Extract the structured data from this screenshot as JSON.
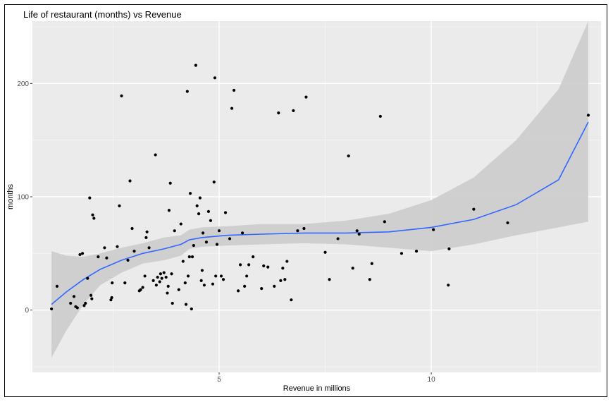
{
  "chart_data": {
    "type": "scatter",
    "title": "Life of restaurant (months) vs Revenue",
    "xlabel": "Revenue in millions",
    "ylabel": "months",
    "xlim": [
      0.6,
      14.0
    ],
    "ylim": [
      -55,
      255
    ],
    "xticks": [
      5,
      10
    ],
    "yticks": [
      0,
      100,
      200
    ],
    "grid": true,
    "background": "#ebebeb",
    "point_color": "#000000",
    "smooth_color": "#3366ff",
    "band_color": "#cccccc",
    "points": [
      [
        1.05,
        1
      ],
      [
        1.18,
        21
      ],
      [
        1.5,
        6
      ],
      [
        1.58,
        12
      ],
      [
        1.62,
        3
      ],
      [
        1.66,
        2
      ],
      [
        1.72,
        49
      ],
      [
        1.78,
        50
      ],
      [
        1.82,
        4
      ],
      [
        1.85,
        6
      ],
      [
        1.9,
        28
      ],
      [
        1.95,
        99
      ],
      [
        1.98,
        13
      ],
      [
        2.0,
        10
      ],
      [
        2.02,
        84
      ],
      [
        2.05,
        81
      ],
      [
        2.15,
        47
      ],
      [
        2.3,
        55
      ],
      [
        2.35,
        46
      ],
      [
        2.45,
        9
      ],
      [
        2.47,
        11
      ],
      [
        2.48,
        24
      ],
      [
        2.6,
        56
      ],
      [
        2.65,
        92
      ],
      [
        2.7,
        189
      ],
      [
        2.78,
        24
      ],
      [
        2.85,
        44
      ],
      [
        2.9,
        114
      ],
      [
        2.95,
        72
      ],
      [
        3.0,
        52
      ],
      [
        3.12,
        17
      ],
      [
        3.15,
        18
      ],
      [
        3.2,
        20
      ],
      [
        3.25,
        30
      ],
      [
        3.28,
        64
      ],
      [
        3.3,
        69
      ],
      [
        3.35,
        55
      ],
      [
        3.45,
        26
      ],
      [
        3.5,
        137
      ],
      [
        3.52,
        22
      ],
      [
        3.55,
        29
      ],
      [
        3.6,
        25
      ],
      [
        3.62,
        32
      ],
      [
        3.65,
        28
      ],
      [
        3.7,
        33
      ],
      [
        3.75,
        29
      ],
      [
        3.78,
        15
      ],
      [
        3.8,
        21
      ],
      [
        3.82,
        88
      ],
      [
        3.85,
        112
      ],
      [
        3.88,
        32
      ],
      [
        3.9,
        6
      ],
      [
        3.95,
        70
      ],
      [
        4.05,
        18
      ],
      [
        4.1,
        76
      ],
      [
        4.15,
        43
      ],
      [
        4.2,
        24
      ],
      [
        4.22,
        5
      ],
      [
        4.25,
        193
      ],
      [
        4.27,
        30
      ],
      [
        4.3,
        47
      ],
      [
        4.32,
        103
      ],
      [
        4.35,
        1
      ],
      [
        4.37,
        47
      ],
      [
        4.4,
        57
      ],
      [
        4.45,
        216
      ],
      [
        4.48,
        92
      ],
      [
        4.52,
        85
      ],
      [
        4.55,
        99
      ],
      [
        4.58,
        26
      ],
      [
        4.6,
        35
      ],
      [
        4.62,
        68
      ],
      [
        4.65,
        22
      ],
      [
        4.7,
        60
      ],
      [
        4.75,
        87
      ],
      [
        4.8,
        79
      ],
      [
        4.85,
        23
      ],
      [
        4.88,
        113
      ],
      [
        4.9,
        205
      ],
      [
        4.92,
        30
      ],
      [
        4.95,
        58
      ],
      [
        5.0,
        70
      ],
      [
        5.05,
        30
      ],
      [
        5.1,
        27
      ],
      [
        5.15,
        86
      ],
      [
        5.25,
        63
      ],
      [
        5.3,
        178
      ],
      [
        5.35,
        194
      ],
      [
        5.45,
        17
      ],
      [
        5.5,
        40
      ],
      [
        5.55,
        68
      ],
      [
        5.6,
        21
      ],
      [
        5.65,
        30
      ],
      [
        5.7,
        40
      ],
      [
        5.8,
        47
      ],
      [
        6.0,
        19
      ],
      [
        6.05,
        39
      ],
      [
        6.15,
        38
      ],
      [
        6.3,
        21
      ],
      [
        6.4,
        174
      ],
      [
        6.45,
        26
      ],
      [
        6.5,
        37
      ],
      [
        6.55,
        27
      ],
      [
        6.6,
        43
      ],
      [
        6.7,
        9
      ],
      [
        6.75,
        176
      ],
      [
        6.85,
        70
      ],
      [
        7.0,
        72
      ],
      [
        7.05,
        188
      ],
      [
        7.5,
        51
      ],
      [
        7.6,
        27
      ],
      [
        7.8,
        63
      ],
      [
        8.05,
        136
      ],
      [
        8.15,
        37
      ],
      [
        8.25,
        70
      ],
      [
        8.3,
        67
      ],
      [
        8.55,
        27
      ],
      [
        8.6,
        41
      ],
      [
        8.8,
        171
      ],
      [
        8.9,
        78
      ],
      [
        9.3,
        50
      ],
      [
        9.65,
        52
      ],
      [
        10.05,
        71
      ],
      [
        10.4,
        22
      ],
      [
        10.42,
        54
      ],
      [
        11.0,
        89
      ],
      [
        11.8,
        77
      ],
      [
        13.7,
        172
      ]
    ],
    "smooth_line": [
      [
        1.05,
        5
      ],
      [
        1.4,
        16
      ],
      [
        1.8,
        27
      ],
      [
        2.2,
        36
      ],
      [
        2.7,
        44
      ],
      [
        3.2,
        50
      ],
      [
        3.7,
        54
      ],
      [
        4.1,
        58
      ],
      [
        4.3,
        62
      ],
      [
        4.6,
        64
      ],
      [
        5.2,
        66
      ],
      [
        6.0,
        67
      ],
      [
        7.0,
        68
      ],
      [
        8.0,
        68
      ],
      [
        9.0,
        69
      ],
      [
        10.0,
        73
      ],
      [
        11.0,
        80
      ],
      [
        12.0,
        93
      ],
      [
        13.0,
        115
      ],
      [
        13.7,
        166
      ]
    ],
    "band_upper": [
      [
        1.05,
        52
      ],
      [
        1.4,
        48
      ],
      [
        1.8,
        47
      ],
      [
        2.2,
        50
      ],
      [
        2.7,
        55
      ],
      [
        3.2,
        59
      ],
      [
        3.7,
        64
      ],
      [
        4.1,
        66
      ],
      [
        4.3,
        71
      ],
      [
        4.6,
        73
      ],
      [
        5.2,
        74
      ],
      [
        6.0,
        76
      ],
      [
        7.0,
        76
      ],
      [
        8.0,
        79
      ],
      [
        9.0,
        85
      ],
      [
        10.0,
        97
      ],
      [
        11.0,
        117
      ],
      [
        12.0,
        150
      ],
      [
        13.0,
        195
      ],
      [
        13.7,
        255
      ]
    ],
    "band_lower": [
      [
        1.05,
        -42
      ],
      [
        1.4,
        -18
      ],
      [
        1.8,
        5
      ],
      [
        2.2,
        22
      ],
      [
        2.7,
        33
      ],
      [
        3.2,
        41
      ],
      [
        3.7,
        44
      ],
      [
        4.1,
        48
      ],
      [
        4.3,
        54
      ],
      [
        4.6,
        56
      ],
      [
        5.2,
        57
      ],
      [
        6.0,
        58
      ],
      [
        7.0,
        59
      ],
      [
        8.0,
        58
      ],
      [
        9.0,
        55
      ],
      [
        10.0,
        52
      ],
      [
        11.0,
        58
      ],
      [
        12.0,
        66
      ],
      [
        13.0,
        73
      ],
      [
        13.7,
        78
      ]
    ]
  }
}
